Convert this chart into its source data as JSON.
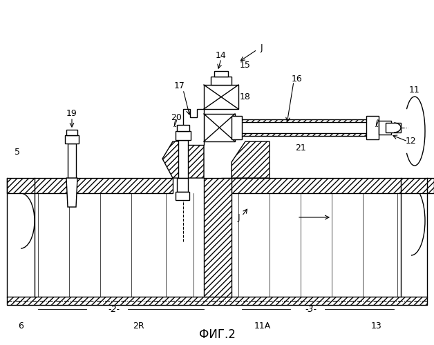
{
  "title": "ФИГ.2",
  "bg_color": "#ffffff",
  "line_color": "#000000",
  "hatch_color": "#000000",
  "labels": {
    "2": "-2-",
    "3": "-3-",
    "5": "5",
    "6": "6",
    "11": "11",
    "11A": "11A",
    "12": "12",
    "13": "13",
    "14": "14",
    "15": "15",
    "16": "16",
    "17": "17",
    "18": "18",
    "19": "19",
    "20": "20",
    "21": "21",
    "2R": "2R",
    "J_top": "J",
    "J_mid": "J",
    "ell": "ℓ"
  }
}
